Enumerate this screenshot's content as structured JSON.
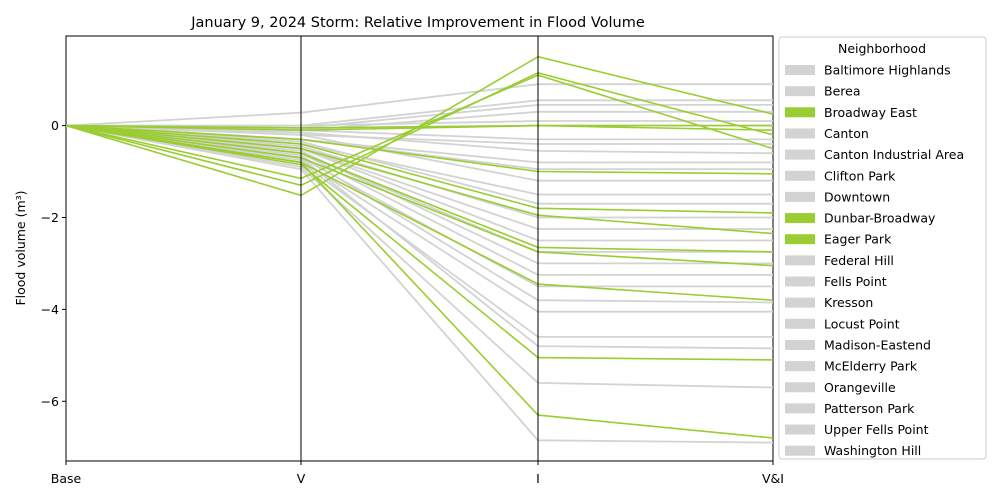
{
  "chart_data": {
    "type": "line",
    "subtype": "parallel-coordinates",
    "title": "January 9, 2024 Storm: Relative Improvement in Flood Volume",
    "ylabel": "Flood volume (m³)",
    "xlabel": "",
    "axes": [
      "Base",
      "V",
      "I",
      "V&I"
    ],
    "ylim": [
      -7.3,
      1.95
    ],
    "yticks": [
      0,
      -2,
      -4,
      -6
    ],
    "ytick_labels": [
      "0",
      "−2",
      "−4",
      "−6"
    ],
    "grid": false,
    "legend": {
      "title": "Neighborhood",
      "placement": "right-outside",
      "entries": [
        {
          "name": "Baltimore Highlands",
          "highlight": false
        },
        {
          "name": "Berea",
          "highlight": false
        },
        {
          "name": "Broadway East",
          "highlight": true
        },
        {
          "name": "Canton",
          "highlight": false
        },
        {
          "name": "Canton Industrial Area",
          "highlight": false
        },
        {
          "name": "Clifton Park",
          "highlight": false
        },
        {
          "name": "Downtown",
          "highlight": false
        },
        {
          "name": "Dunbar-Broadway",
          "highlight": true
        },
        {
          "name": "Eager Park",
          "highlight": true
        },
        {
          "name": "Federal Hill",
          "highlight": false
        },
        {
          "name": "Fells Point",
          "highlight": false
        },
        {
          "name": "Kresson",
          "highlight": false
        },
        {
          "name": "Locust Point",
          "highlight": false
        },
        {
          "name": "Madison-Eastend",
          "highlight": false
        },
        {
          "name": "McElderry Park",
          "highlight": false
        },
        {
          "name": "Orangeville",
          "highlight": false
        },
        {
          "name": "Patterson Park",
          "highlight": false
        },
        {
          "name": "Upper Fells Point",
          "highlight": false
        },
        {
          "name": "Washington Hill",
          "highlight": false
        }
      ]
    },
    "colors": {
      "highlight": "#9acd32",
      "other": "#d3d3d3"
    },
    "series": [
      {
        "group": "other",
        "values": [
          0,
          0.28,
          0.9,
          0.9
        ]
      },
      {
        "group": "other",
        "values": [
          0,
          0.0,
          0.55,
          0.55
        ]
      },
      {
        "group": "other",
        "values": [
          0,
          -0.05,
          0.45,
          0.45
        ]
      },
      {
        "group": "other",
        "values": [
          0,
          -0.1,
          0.3,
          0.3
        ]
      },
      {
        "group": "other",
        "values": [
          0,
          0.0,
          0.1,
          0.1
        ]
      },
      {
        "group": "other",
        "values": [
          0,
          -0.05,
          0.0,
          0.0
        ]
      },
      {
        "group": "other",
        "values": [
          0,
          -0.1,
          -0.3,
          -0.3
        ]
      },
      {
        "group": "other",
        "values": [
          0,
          -0.2,
          -0.4,
          -0.4
        ]
      },
      {
        "group": "other",
        "values": [
          0,
          -0.15,
          -0.55,
          -0.6
        ]
      },
      {
        "group": "other",
        "values": [
          0,
          -0.3,
          -0.8,
          -0.8
        ]
      },
      {
        "group": "other",
        "values": [
          0,
          -0.3,
          -0.95,
          -0.95
        ]
      },
      {
        "group": "other",
        "values": [
          0,
          -0.2,
          -1.2,
          -1.2
        ]
      },
      {
        "group": "other",
        "values": [
          0,
          -0.4,
          -1.5,
          -1.5
        ]
      },
      {
        "group": "other",
        "values": [
          0,
          -0.35,
          -1.7,
          -1.7
        ]
      },
      {
        "group": "other",
        "values": [
          0,
          -0.45,
          -2.0,
          -2.0
        ]
      },
      {
        "group": "other",
        "values": [
          0,
          -0.5,
          -2.25,
          -2.25
        ]
      },
      {
        "group": "other",
        "values": [
          0,
          -0.5,
          -2.5,
          -2.5
        ]
      },
      {
        "group": "other",
        "values": [
          0,
          -0.6,
          -2.75,
          -2.75
        ]
      },
      {
        "group": "other",
        "values": [
          0,
          -0.55,
          -3.0,
          -3.0
        ]
      },
      {
        "group": "other",
        "values": [
          0,
          -0.6,
          -3.25,
          -3.25
        ]
      },
      {
        "group": "other",
        "values": [
          0,
          -0.7,
          -3.5,
          -3.5
        ]
      },
      {
        "group": "other",
        "values": [
          0,
          -0.65,
          -3.8,
          -3.85
        ]
      },
      {
        "group": "other",
        "values": [
          0,
          -0.75,
          -4.05,
          -4.05
        ]
      },
      {
        "group": "other",
        "values": [
          0,
          -0.8,
          -4.6,
          -4.6
        ]
      },
      {
        "group": "other",
        "values": [
          0,
          -0.7,
          -4.8,
          -4.85
        ]
      },
      {
        "group": "other",
        "values": [
          0,
          -0.9,
          -5.6,
          -5.7
        ]
      },
      {
        "group": "other",
        "values": [
          0,
          -0.95,
          -6.85,
          -6.9
        ]
      },
      {
        "group": "highlight",
        "values": [
          0,
          -1.52,
          1.5,
          0.25
        ]
      },
      {
        "group": "highlight",
        "values": [
          0,
          -1.3,
          1.15,
          -0.2
        ]
      },
      {
        "group": "highlight",
        "values": [
          0,
          -1.15,
          1.1,
          -0.5
        ]
      },
      {
        "group": "highlight",
        "values": [
          0,
          -0.05,
          0.0,
          0.0
        ]
      },
      {
        "group": "highlight",
        "values": [
          0,
          -0.1,
          0.0,
          -0.1
        ]
      },
      {
        "group": "highlight",
        "values": [
          0,
          -0.3,
          -1.0,
          -1.05
        ]
      },
      {
        "group": "highlight",
        "values": [
          0,
          -0.4,
          -1.8,
          -1.9
        ]
      },
      {
        "group": "highlight",
        "values": [
          0,
          -0.5,
          -1.95,
          -2.35
        ]
      },
      {
        "group": "highlight",
        "values": [
          0,
          -0.6,
          -2.65,
          -2.75
        ]
      },
      {
        "group": "highlight",
        "values": [
          0,
          -0.7,
          -2.75,
          -3.05
        ]
      },
      {
        "group": "highlight",
        "values": [
          0,
          -0.8,
          -3.45,
          -3.8
        ]
      },
      {
        "group": "highlight",
        "values": [
          0,
          -0.85,
          -5.05,
          -5.1
        ]
      },
      {
        "group": "highlight",
        "values": [
          0,
          -0.8,
          -6.3,
          -6.8
        ]
      }
    ]
  }
}
